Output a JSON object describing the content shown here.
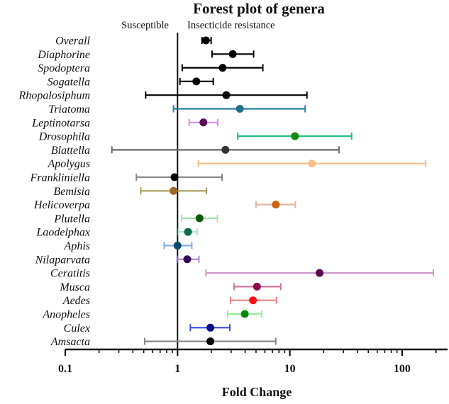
{
  "chart_data": {
    "type": "forest",
    "title": "Forest plot of genera",
    "xlabel": "Fold Change",
    "xscale": "log",
    "xlim": [
      0.1,
      250
    ],
    "xticks": [
      0.1,
      1,
      10,
      100
    ],
    "xtick_labels": [
      "0.1",
      "1",
      "10",
      "100"
    ],
    "reference_line": 1,
    "annotations": {
      "left": "Susceptible",
      "right": "Insecticide resistance"
    },
    "rows": [
      {
        "name": "Overall",
        "est": 1.79,
        "lo": 1.65,
        "hi": 1.99,
        "dot": "#000000",
        "line": "#000000"
      },
      {
        "name": "Diaphorine",
        "est": 3.1,
        "lo": 2.03,
        "hi": 4.76,
        "dot": "#000000",
        "line": "#000000"
      },
      {
        "name": "Spodoptera",
        "est": 2.52,
        "lo": 1.1,
        "hi": 5.75,
        "dot": "#000000",
        "line": "#000000"
      },
      {
        "name": "Sogatella",
        "est": 1.47,
        "lo": 1.05,
        "hi": 2.08,
        "dot": "#000000",
        "line": "#000000"
      },
      {
        "name": "Rhopalosiphum",
        "est": 2.72,
        "lo": 0.52,
        "hi": 14.2,
        "dot": "#000000",
        "line": "#000000"
      },
      {
        "name": "Triatoma",
        "est": 3.59,
        "lo": 0.92,
        "hi": 13.7,
        "dot": "#1f6f8b",
        "line": "#2a7fa0"
      },
      {
        "name": "Leptinotarsa",
        "est": 1.7,
        "lo": 1.27,
        "hi": 2.28,
        "dot": "#5a0a5a",
        "line": "#dd88ee"
      },
      {
        "name": "Drosophila",
        "est": 11.1,
        "lo": 3.44,
        "hi": 35.5,
        "dot": "#0a8a0a",
        "line": "#20c080"
      },
      {
        "name": "Blattella",
        "est": 2.67,
        "lo": 0.26,
        "hi": 27.4,
        "dot": "#333333",
        "line": "#666666"
      },
      {
        "name": "Apolygus",
        "est": 15.7,
        "lo": 1.53,
        "hi": 162,
        "dot": "#f8be8a",
        "line": "#f8be8a"
      },
      {
        "name": "Frankliniella",
        "est": 0.94,
        "lo": 0.43,
        "hi": 2.49,
        "dot": "#000000",
        "line": "#888888"
      },
      {
        "name": "Bemisia",
        "est": 0.92,
        "lo": 0.47,
        "hi": 1.81,
        "dot": "#9a6a2a",
        "line": "#a89a5a"
      },
      {
        "name": "Helicoverpa",
        "est": 7.5,
        "lo": 5.0,
        "hi": 11.2,
        "dot": "#d06010",
        "line": "#e0b8a0"
      },
      {
        "name": "Plutella",
        "est": 1.57,
        "lo": 1.09,
        "hi": 2.27,
        "dot": "#0a5a0a",
        "line": "#a8e0a8"
      },
      {
        "name": "Laodelphax",
        "est": 1.24,
        "lo": 1.02,
        "hi": 1.5,
        "dot": "#0a6a4a",
        "line": "#a8e8d0"
      },
      {
        "name": "Aphis",
        "est": 1.0,
        "lo": 0.76,
        "hi": 1.34,
        "dot": "#0a4a6a",
        "line": "#88aadd"
      },
      {
        "name": "Nilaparvata",
        "est": 1.22,
        "lo": 0.99,
        "hi": 1.55,
        "dot": "#3a0a5a",
        "line": "#b088cc"
      },
      {
        "name": "Ceratitis",
        "est": 18.4,
        "lo": 1.79,
        "hi": 190,
        "dot": "#5a0a4a",
        "line": "#cc99cc"
      },
      {
        "name": "Musca",
        "est": 5.1,
        "lo": 3.19,
        "hi": 8.3,
        "dot": "#8a0a4a",
        "line": "#cc7799"
      },
      {
        "name": "Aedes",
        "est": 4.7,
        "lo": 2.96,
        "hi": 7.6,
        "dot": "#ff1010",
        "line": "#f08080"
      },
      {
        "name": "Anopheles",
        "est": 3.97,
        "lo": 2.8,
        "hi": 5.6,
        "dot": "#0a8a0a",
        "line": "#90f090"
      },
      {
        "name": "Culex",
        "est": 1.96,
        "lo": 1.3,
        "hi": 2.92,
        "dot": "#0a0a8a",
        "line": "#3a4ae0"
      },
      {
        "name": "Amsacta",
        "est": 1.96,
        "lo": 0.51,
        "hi": 7.5,
        "dot": "#000000",
        "line": "#888888"
      }
    ]
  }
}
